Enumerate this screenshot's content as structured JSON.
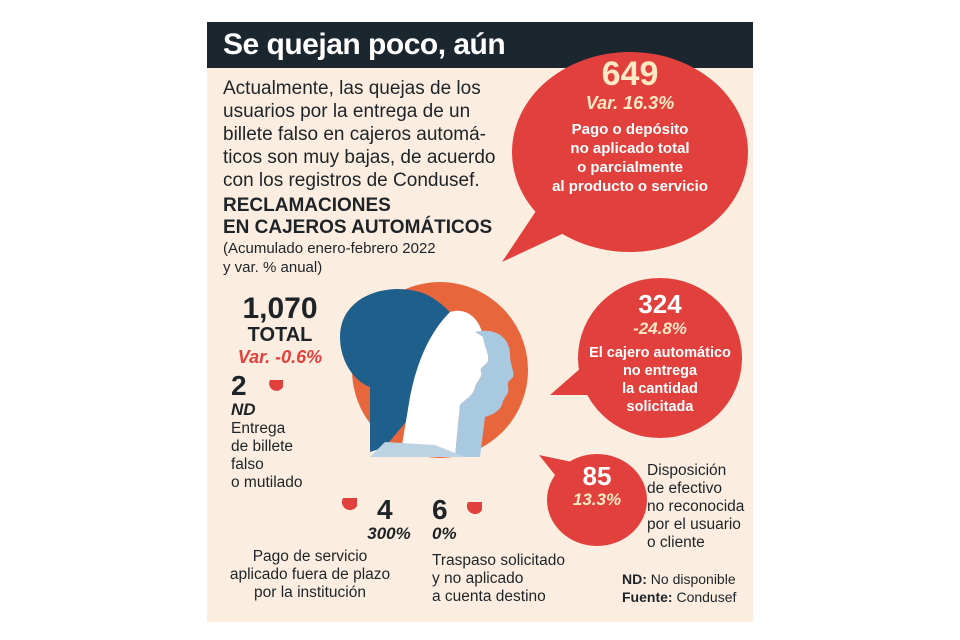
{
  "title": "Se quejan poco, aún",
  "intro_lines": [
    "Actualmente, las quejas de los",
    "usuarios por la entrega de un",
    "billete falso en cajeros automá-",
    "ticos son muy bajas, de acuerdo",
    "con los registros de Condusef."
  ],
  "section_title_lines": [
    "RECLAMACIONES",
    "EN CAJEROS AUTOMÁTICOS"
  ],
  "section_subtitle_lines": [
    "(Acumulado enero-febrero 2022",
    "y var. % anual)"
  ],
  "total": {
    "value": "1,070",
    "label": "TOTAL",
    "var": "Var. -0.6%"
  },
  "bubble_649": {
    "value": "649",
    "var": "Var. 16.3%",
    "lines": [
      "Pago o depósito",
      "no aplicado total",
      "o parcialmente",
      "al producto o servicio"
    ]
  },
  "bubble_324": {
    "value": "324",
    "var": "-24.8%",
    "lines": [
      "El cajero automático",
      "no entrega",
      "la cantidad",
      "solicitada"
    ]
  },
  "bubble_85": {
    "value": "85",
    "var": "13.3%",
    "lines": [
      "Disposición",
      "de efectivo",
      "no reconocida",
      "por el usuario",
      "o cliente"
    ]
  },
  "item_billete": {
    "value": "2",
    "var": "ND",
    "lines": [
      "Entrega",
      "de billete",
      "falso",
      "o mutilado"
    ]
  },
  "item_pago": {
    "value": "4",
    "var": "300%",
    "lines": [
      "Pago de servicio",
      "aplicado fuera de plazo",
      "por la institución"
    ]
  },
  "item_traspaso": {
    "value": "6",
    "var": "0%",
    "lines": [
      "Traspaso solicitado",
      "y no aplicado",
      "a cuenta destino"
    ]
  },
  "footnote": {
    "nd_key": "ND:",
    "nd_text": "No disponible",
    "source_key": "Fuente:",
    "source_text": "Condusef"
  },
  "colors": {
    "red": "#e2403d",
    "navy": "#1c262f",
    "cream": "#fbeee0",
    "orange": "#e8663c",
    "blue": "#1f5f8b",
    "text": "#1e2328"
  },
  "icons": [
    "women-profiles-illustration",
    "speech-bubble",
    "drop-icon"
  ]
}
